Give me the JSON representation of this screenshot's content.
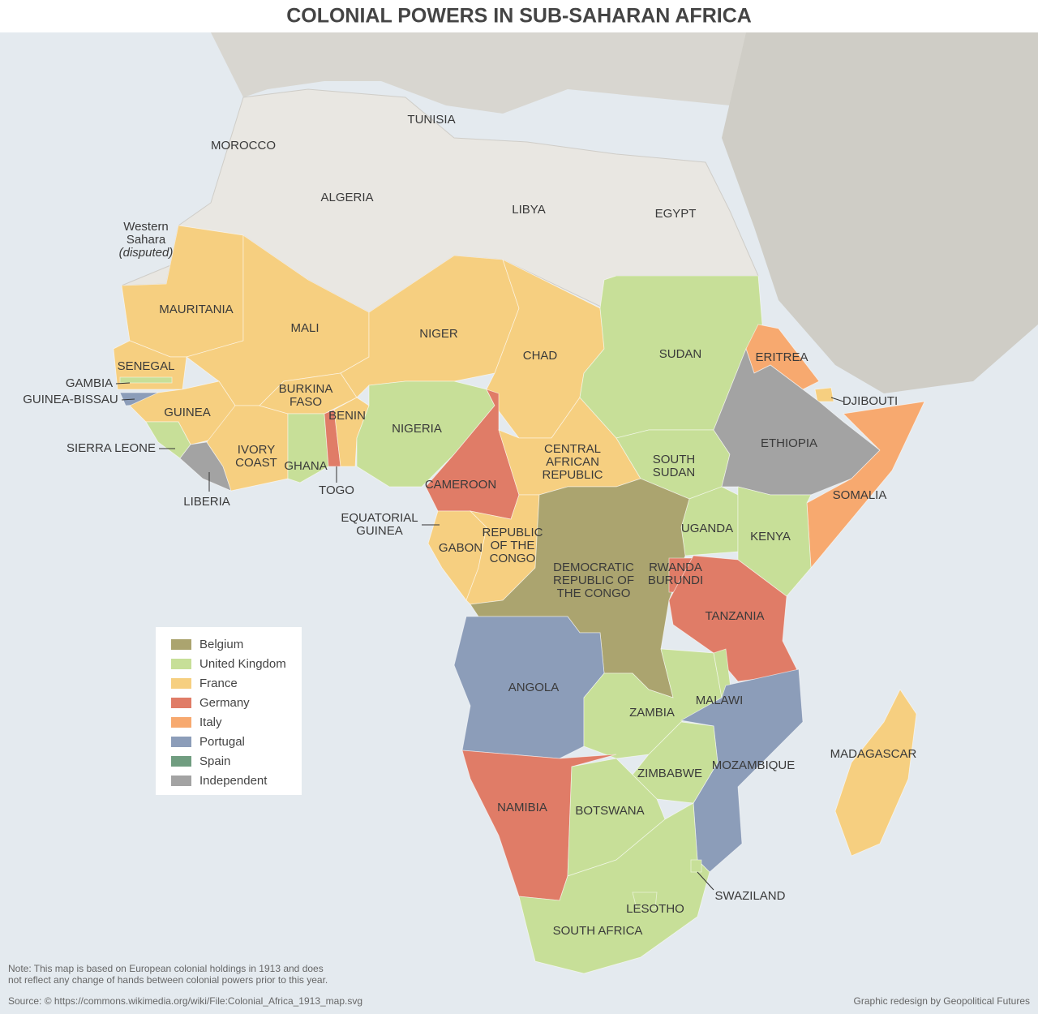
{
  "title": "COLONIAL POWERS IN SUB-SAHARAN AFRICA",
  "legend": [
    {
      "label": "Belgium",
      "color": "#aba46f"
    },
    {
      "label": "United Kingdom",
      "color": "#c7df98"
    },
    {
      "label": "France",
      "color": "#f6cf80"
    },
    {
      "label": "Germany",
      "color": "#e07c67"
    },
    {
      "label": "Italy",
      "color": "#f7a96f"
    },
    {
      "label": "Portugal",
      "color": "#8c9db9"
    },
    {
      "label": "Spain",
      "color": "#709d80"
    },
    {
      "label": "Independent",
      "color": "#a3a3a3"
    }
  ],
  "countries": [
    {
      "label": [
        "Western",
        "Sahara",
        "(disputed)"
      ]
    },
    {
      "label": [
        "MOROCCO"
      ]
    },
    {
      "label": [
        "ALGERIA"
      ]
    },
    {
      "label": [
        "TUNISIA"
      ]
    },
    {
      "label": [
        "LIBYA"
      ]
    },
    {
      "label": [
        "EGYPT"
      ]
    },
    {
      "label": [
        "MAURITANIA"
      ],
      "color": "#f6cf80"
    },
    {
      "label": [
        "MALI"
      ],
      "color": "#f6cf80"
    },
    {
      "label": [
        "SENEGAL"
      ],
      "color": "#f6cf80"
    },
    {
      "label": [
        "GAMBIA"
      ],
      "color": "#c7df98"
    },
    {
      "label": [
        "GUINEA-BISSAU"
      ],
      "color": "#8c9db9"
    },
    {
      "label": [
        "GUINEA"
      ],
      "color": "#f6cf80"
    },
    {
      "label": [
        "SIERRA LEONE"
      ],
      "color": "#c7df98"
    },
    {
      "label": [
        "LIBERIA"
      ],
      "color": "#a3a3a3"
    },
    {
      "label": [
        "IVORY",
        "COAST"
      ],
      "color": "#f6cf80"
    },
    {
      "label": [
        "BURKINA",
        "FASO"
      ],
      "color": "#f6cf80"
    },
    {
      "label": [
        "GHANA"
      ],
      "color": "#c7df98"
    },
    {
      "label": [
        "TOGO"
      ],
      "color": "#e07c67"
    },
    {
      "label": [
        "BENIN"
      ],
      "color": "#f6cf80"
    },
    {
      "label": [
        "NIGER"
      ],
      "color": "#f6cf80"
    },
    {
      "label": [
        "NIGERIA"
      ],
      "color": "#c7df98"
    },
    {
      "label": [
        "CHAD"
      ],
      "color": "#f6cf80"
    },
    {
      "label": [
        "CAMEROON"
      ],
      "color": "#e07c67"
    },
    {
      "label": [
        "CENTRAL",
        "AFRICAN",
        "REPUBLIC"
      ],
      "color": "#f6cf80"
    },
    {
      "label": [
        "SUDAN"
      ],
      "color": "#c7df98"
    },
    {
      "label": [
        "SOUTH",
        "SUDAN"
      ],
      "color": "#c7df98"
    },
    {
      "label": [
        "ERITREA"
      ],
      "color": "#f7a96f"
    },
    {
      "label": [
        "DJIBOUTI"
      ],
      "color": "#f6cf80"
    },
    {
      "label": [
        "ETHIOPIA"
      ],
      "color": "#a3a3a3"
    },
    {
      "label": [
        "SOMALIA"
      ],
      "color": "#f7a96f"
    },
    {
      "label": [
        "UGANDA"
      ],
      "color": "#c7df98"
    },
    {
      "label": [
        "KENYA"
      ],
      "color": "#c7df98"
    },
    {
      "label": [
        "EQUATORIAL",
        "GUINEA"
      ],
      "color": "#709d80"
    },
    {
      "label": [
        "GABON"
      ],
      "color": "#f6cf80"
    },
    {
      "label": [
        "REPUBLIC",
        "OF THE",
        "CONGO"
      ],
      "color": "#f6cf80"
    },
    {
      "label": [
        "DEMOCRATIC",
        "REPUBLIC OF",
        "THE CONGO"
      ],
      "color": "#aba46f"
    },
    {
      "label": [
        "RWANDA",
        "BURUNDI"
      ],
      "color": "#e07c67"
    },
    {
      "label": [
        "TANZANIA"
      ],
      "color": "#e07c67"
    },
    {
      "label": [
        "ANGOLA"
      ],
      "color": "#8c9db9"
    },
    {
      "label": [
        "ZAMBIA"
      ],
      "color": "#c7df98"
    },
    {
      "label": [
        "MALAWI"
      ],
      "color": "#c7df98"
    },
    {
      "label": [
        "MOZAMBIQUE"
      ],
      "color": "#8c9db9"
    },
    {
      "label": [
        "ZIMBABWE"
      ],
      "color": "#c7df98"
    },
    {
      "label": [
        "NAMIBIA"
      ],
      "color": "#e07c67"
    },
    {
      "label": [
        "BOTSWANA"
      ],
      "color": "#c7df98"
    },
    {
      "label": [
        "SOUTH AFRICA"
      ],
      "color": "#c7df98"
    },
    {
      "label": [
        "SWAZILAND"
      ],
      "color": "#c7df98"
    },
    {
      "label": [
        "LESOTHO"
      ],
      "color": "#c7df98"
    },
    {
      "label": [
        "MADAGASCAR"
      ],
      "color": "#f6cf80"
    }
  ],
  "note": [
    "Note: This map is based on European colonial holdings in 1913 and does",
    "not reflect any change of hands between colonial powers prior to this year."
  ],
  "source": "Source: © https://commons.wikimedia.org/wiki/File:Colonial_Africa_1913_map.svg",
  "credit": "Graphic redesign by Geopolitical Futures"
}
